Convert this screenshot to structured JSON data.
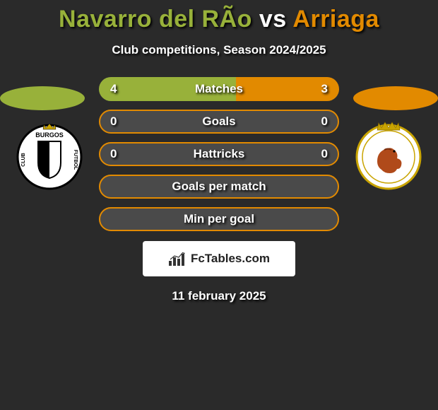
{
  "title": {
    "player_left": "Navarro del RÃ­o",
    "vs": "vs",
    "player_right": "Arriaga",
    "color_left": "#98b13a",
    "color_vs": "#ffffff",
    "color_right": "#e28a00"
  },
  "subtitle": "Club competitions, Season 2024/2025",
  "date": "11 february 2025",
  "accent": {
    "left": "#98b13a",
    "right": "#e28a00",
    "row_bg": "#4a4a4a"
  },
  "rows": [
    {
      "label": "Matches",
      "left": "4",
      "right": "3",
      "left_pct": 57,
      "right_pct": 43,
      "show_values": true,
      "border_color": null
    },
    {
      "label": "Goals",
      "left": "0",
      "right": "0",
      "left_pct": 0,
      "right_pct": 0,
      "show_values": true,
      "border_color": "#e28a00"
    },
    {
      "label": "Hattricks",
      "left": "0",
      "right": "0",
      "left_pct": 0,
      "right_pct": 0,
      "show_values": true,
      "border_color": "#e28a00"
    },
    {
      "label": "Goals per match",
      "left": "",
      "right": "",
      "left_pct": 0,
      "right_pct": 0,
      "show_values": false,
      "border_color": "#e28a00"
    },
    {
      "label": "Min per goal",
      "left": "",
      "right": "",
      "left_pct": 0,
      "right_pct": 0,
      "show_values": false,
      "border_color": "#e28a00"
    }
  ],
  "brand": {
    "name": "FcTables.com",
    "icon": "bars-icon"
  },
  "badges": {
    "left_alt": "Burgos CF crest",
    "right_alt": "Real Zaragoza crest"
  }
}
